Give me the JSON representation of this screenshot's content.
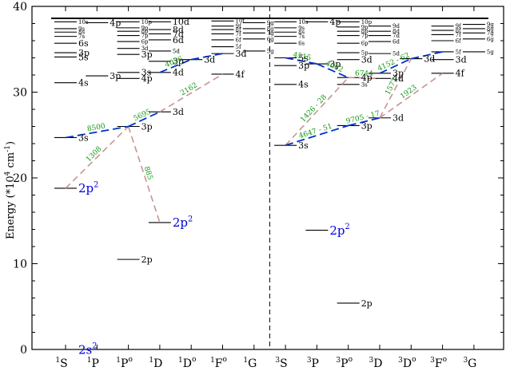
{
  "ylabel_main": "Energy (*10",
  "ylabel_sup": "4",
  "ylabel_unit": " cm",
  "ylabel_unit_sup": "-1",
  "ylabel_close": ")",
  "y_ticks": [
    0,
    10,
    20,
    30,
    40
  ],
  "columns_left": [
    "1S",
    "1P",
    "1Po",
    "1D",
    "1Do",
    "1Fo",
    "1G"
  ],
  "columns_right": [
    "3S",
    "3P",
    "3Po",
    "3D",
    "3Do",
    "3Fo",
    "3G"
  ],
  "column_labels": [
    {
      "mult": "1",
      "L": "S",
      "par": ""
    },
    {
      "mult": "1",
      "L": "P",
      "par": ""
    },
    {
      "mult": "1",
      "L": "P",
      "par": "o"
    },
    {
      "mult": "1",
      "L": "D",
      "par": ""
    },
    {
      "mult": "1",
      "L": "D",
      "par": "o"
    },
    {
      "mult": "1",
      "L": "F",
      "par": "o"
    },
    {
      "mult": "1",
      "L": "G",
      "par": ""
    },
    {
      "mult": "3",
      "L": "S",
      "par": ""
    },
    {
      "mult": "3",
      "L": "P",
      "par": ""
    },
    {
      "mult": "3",
      "L": "P",
      "par": "o"
    },
    {
      "mult": "3",
      "L": "D",
      "par": ""
    },
    {
      "mult": "3",
      "L": "D",
      "par": "o"
    },
    {
      "mult": "3",
      "L": "F",
      "par": "o"
    },
    {
      "mult": "3",
      "L": "G",
      "par": ""
    }
  ],
  "ionization_limit": 38.6,
  "levels": [
    {
      "col": 0,
      "E": 0,
      "label": "2s",
      "sup": "2",
      "color": "#0000dd",
      "size": "big"
    },
    {
      "col": 0,
      "E": 18.8,
      "label": "2p",
      "sup": "2",
      "color": "#0000dd",
      "size": "big"
    },
    {
      "col": 0,
      "E": 24.7,
      "label": "3s",
      "sup": "",
      "color": "#000000",
      "size": "med"
    },
    {
      "col": 0,
      "E": 31.1,
      "label": "4s",
      "sup": "",
      "color": "#000000",
      "size": "med"
    },
    {
      "col": 0,
      "E": 34.1,
      "label": "5s",
      "sup": "",
      "color": "#000000",
      "size": "med"
    },
    {
      "col": 0,
      "E": 34.6,
      "label": "3p",
      "sup": "",
      "color": "#000000",
      "size": "med"
    },
    {
      "col": 0,
      "E": 35.7,
      "label": "6s",
      "sup": "",
      "color": "#000000",
      "size": "med"
    },
    {
      "col": 0,
      "E": 36.5,
      "label": "7s",
      "sup": "",
      "color": "#000000",
      "size": "small"
    },
    {
      "col": 0,
      "E": 37.0,
      "label": "8s",
      "sup": "",
      "color": "#000000",
      "size": "small"
    },
    {
      "col": 0,
      "E": 37.4,
      "label": "9s",
      "sup": "",
      "color": "#000000",
      "size": "small"
    },
    {
      "col": 0,
      "E": 38.2,
      "label": "10s",
      "sup": "",
      "color": "#000000",
      "size": "small"
    },
    {
      "col": 1,
      "E": 31.9,
      "label": "3p",
      "sup": "",
      "color": "#000000",
      "size": "med"
    },
    {
      "col": 1,
      "E": 38.1,
      "label": "4p",
      "sup": "",
      "color": "#000000",
      "size": "med"
    },
    {
      "col": 2,
      "E": 10.5,
      "label": "2p",
      "sup": "",
      "color": "#000000",
      "size": "med"
    },
    {
      "col": 2,
      "E": 26.0,
      "label": "3p",
      "sup": "",
      "color": "#000000",
      "size": "med"
    },
    {
      "col": 2,
      "E": 31.6,
      "label": "4p",
      "sup": "",
      "color": "#000000",
      "size": "med"
    },
    {
      "col": 2,
      "E": 32.3,
      "label": "3s",
      "sup": "",
      "color": "#000000",
      "size": "med"
    },
    {
      "col": 2,
      "E": 34.4,
      "label": "3p",
      "sup": "",
      "color": "#000000",
      "size": "med"
    },
    {
      "col": 2,
      "E": 35.1,
      "label": "3d",
      "sup": "",
      "color": "#000000",
      "size": "small"
    },
    {
      "col": 2,
      "E": 35.9,
      "label": "6p",
      "sup": "",
      "color": "#000000",
      "size": "small"
    },
    {
      "col": 2,
      "E": 36.6,
      "label": "7p",
      "sup": "",
      "color": "#000000",
      "size": "small"
    },
    {
      "col": 2,
      "E": 37.1,
      "label": "8p",
      "sup": "",
      "color": "#000000",
      "size": "small"
    },
    {
      "col": 2,
      "E": 37.5,
      "label": "9p",
      "sup": "",
      "color": "#000000",
      "size": "small"
    },
    {
      "col": 2,
      "E": 38.2,
      "label": "10p",
      "sup": "",
      "color": "#000000",
      "size": "small"
    },
    {
      "col": 3,
      "E": 14.8,
      "label": "2p",
      "sup": "2",
      "color": "#0000dd",
      "size": "big"
    },
    {
      "col": 3,
      "E": 27.7,
      "label": "3d",
      "sup": "",
      "color": "#000000",
      "size": "med"
    },
    {
      "col": 3,
      "E": 32.3,
      "label": "4d",
      "sup": "",
      "color": "#000000",
      "size": "med"
    },
    {
      "col": 3,
      "E": 33.6,
      "label": "3p",
      "sup": "",
      "color": "#000000",
      "size": "med"
    },
    {
      "col": 3,
      "E": 34.8,
      "label": "5d",
      "sup": "",
      "color": "#000000",
      "size": "small"
    },
    {
      "col": 3,
      "E": 36.1,
      "label": "6d",
      "sup": "",
      "color": "#000000",
      "size": "med"
    },
    {
      "col": 3,
      "E": 36.8,
      "label": "7d",
      "sup": "",
      "color": "#000000",
      "size": "med"
    },
    {
      "col": 3,
      "E": 37.3,
      "label": "8d",
      "sup": "",
      "color": "#000000",
      "size": "med"
    },
    {
      "col": 3,
      "E": 38.2,
      "label": "10d",
      "sup": "",
      "color": "#000000",
      "size": "med"
    },
    {
      "col": 4,
      "E": 33.8,
      "label": "3d",
      "sup": "",
      "color": "#000000",
      "size": "med"
    },
    {
      "col": 5,
      "E": 32.1,
      "label": "4f",
      "sup": "",
      "color": "#000000",
      "size": "med"
    },
    {
      "col": 5,
      "E": 34.5,
      "label": "3d",
      "sup": "",
      "color": "#000000",
      "size": "med"
    },
    {
      "col": 5,
      "E": 35.3,
      "label": "5f",
      "sup": "",
      "color": "#000000",
      "size": "small"
    },
    {
      "col": 5,
      "E": 36.1,
      "label": "6f",
      "sup": "",
      "color": "#000000",
      "size": "small"
    },
    {
      "col": 5,
      "E": 36.8,
      "label": "7f",
      "sup": "",
      "color": "#000000",
      "size": "small"
    },
    {
      "col": 5,
      "E": 37.3,
      "label": "8f",
      "sup": "",
      "color": "#000000",
      "size": "small"
    },
    {
      "col": 5,
      "E": 37.7,
      "label": "9f",
      "sup": "",
      "color": "#000000",
      "size": "small"
    },
    {
      "col": 5,
      "E": 38.3,
      "label": "10f",
      "sup": "",
      "color": "#000000",
      "size": "small"
    },
    {
      "col": 6,
      "E": 34.8,
      "label": "5g",
      "sup": "",
      "color": "#000000",
      "size": "small"
    },
    {
      "col": 6,
      "E": 36.2,
      "label": "6g",
      "sup": "",
      "color": "#000000",
      "size": "small"
    },
    {
      "col": 6,
      "E": 36.9,
      "label": "7g",
      "sup": "",
      "color": "#000000",
      "size": "small"
    },
    {
      "col": 6,
      "E": 37.4,
      "label": "8g",
      "sup": "",
      "color": "#000000",
      "size": "small"
    },
    {
      "col": 6,
      "E": 38.1,
      "label": "9g",
      "sup": "",
      "color": "#000000",
      "size": "small"
    },
    {
      "col": 7,
      "E": 23.8,
      "label": "3s",
      "sup": "",
      "color": "#000000",
      "size": "med"
    },
    {
      "col": 7,
      "E": 30.9,
      "label": "4s",
      "sup": "",
      "color": "#000000",
      "size": "med"
    },
    {
      "col": 7,
      "E": 33.1,
      "label": "3p",
      "sup": "",
      "color": "#000000",
      "size": "med"
    },
    {
      "col": 7,
      "E": 34.0,
      "label": "5s",
      "sup": "",
      "color": "#000000",
      "size": "med"
    },
    {
      "col": 7,
      "E": 35.7,
      "label": "6s",
      "sup": "",
      "color": "#000000",
      "size": "small"
    },
    {
      "col": 7,
      "E": 36.5,
      "label": "7s",
      "sup": "",
      "color": "#000000",
      "size": "small"
    },
    {
      "col": 7,
      "E": 37.0,
      "label": "8s",
      "sup": "",
      "color": "#000000",
      "size": "small"
    },
    {
      "col": 7,
      "E": 37.5,
      "label": "9s",
      "sup": "",
      "color": "#000000",
      "size": "small"
    },
    {
      "col": 7,
      "E": 38.2,
      "label": "10s",
      "sup": "",
      "color": "#000000",
      "size": "small"
    },
    {
      "col": 8,
      "E": 13.9,
      "label": "2p",
      "sup": "2",
      "color": "#0000dd",
      "size": "big"
    },
    {
      "col": 8,
      "E": 33.3,
      "label": "3p",
      "sup": "",
      "color": "#000000",
      "size": "med"
    },
    {
      "col": 8,
      "E": 38.2,
      "label": "4p",
      "sup": "",
      "color": "#000000",
      "size": "med"
    },
    {
      "col": 9,
      "E": 5.4,
      "label": "2p",
      "sup": "",
      "color": "#000000",
      "size": "med"
    },
    {
      "col": 9,
      "E": 26.1,
      "label": "3p",
      "sup": "",
      "color": "#000000",
      "size": "med"
    },
    {
      "col": 9,
      "E": 30.9,
      "label": "3s",
      "sup": "",
      "color": "#000000",
      "size": "small"
    },
    {
      "col": 9,
      "E": 31.7,
      "label": "4p",
      "sup": "",
      "color": "#000000",
      "size": "med"
    },
    {
      "col": 9,
      "E": 33.8,
      "label": "3d",
      "sup": "",
      "color": "#000000",
      "size": "med"
    },
    {
      "col": 9,
      "E": 34.6,
      "label": "5p",
      "sup": "",
      "color": "#000000",
      "size": "small"
    },
    {
      "col": 9,
      "E": 35.7,
      "label": "6p",
      "sup": "",
      "color": "#000000",
      "size": "small"
    },
    {
      "col": 9,
      "E": 36.6,
      "label": "7p",
      "sup": "",
      "color": "#000000",
      "size": "small"
    },
    {
      "col": 9,
      "E": 37.1,
      "label": "8p",
      "sup": "",
      "color": "#000000",
      "size": "small"
    },
    {
      "col": 9,
      "E": 37.6,
      "label": "9p",
      "sup": "",
      "color": "#000000",
      "size": "small"
    },
    {
      "col": 9,
      "E": 38.2,
      "label": "10p",
      "sup": "",
      "color": "#000000",
      "size": "small"
    },
    {
      "col": 10,
      "E": 27.0,
      "label": "3d",
      "sup": "",
      "color": "#000000",
      "size": "med"
    },
    {
      "col": 10,
      "E": 31.6,
      "label": "4d",
      "sup": "",
      "color": "#000000",
      "size": "med"
    },
    {
      "col": 10,
      "E": 32.2,
      "label": "3p",
      "sup": "",
      "color": "#000000",
      "size": "med"
    },
    {
      "col": 10,
      "E": 34.5,
      "label": "5d",
      "sup": "",
      "color": "#000000",
      "size": "small"
    },
    {
      "col": 10,
      "E": 35.9,
      "label": "6d",
      "sup": "",
      "color": "#000000",
      "size": "small"
    },
    {
      "col": 10,
      "E": 36.6,
      "label": "7d",
      "sup": "",
      "color": "#000000",
      "size": "small"
    },
    {
      "col": 10,
      "E": 37.1,
      "label": "8d",
      "sup": "",
      "color": "#000000",
      "size": "small"
    },
    {
      "col": 10,
      "E": 37.7,
      "label": "9d",
      "sup": "",
      "color": "#000000",
      "size": "small"
    },
    {
      "col": 11,
      "E": 33.9,
      "label": "3d",
      "sup": "",
      "color": "#000000",
      "size": "med"
    },
    {
      "col": 12,
      "E": 32.2,
      "label": "4f",
      "sup": "",
      "color": "#000000",
      "size": "med"
    },
    {
      "col": 12,
      "E": 33.8,
      "label": "3d",
      "sup": "",
      "color": "#000000",
      "size": "med"
    },
    {
      "col": 12,
      "E": 34.7,
      "label": "5f",
      "sup": "",
      "color": "#000000",
      "size": "small"
    },
    {
      "col": 12,
      "E": 36.0,
      "label": "6f",
      "sup": "",
      "color": "#000000",
      "size": "small"
    },
    {
      "col": 12,
      "E": 36.7,
      "label": "7f",
      "sup": "",
      "color": "#000000",
      "size": "small"
    },
    {
      "col": 12,
      "E": 37.2,
      "label": "8f",
      "sup": "",
      "color": "#000000",
      "size": "small"
    },
    {
      "col": 12,
      "E": 37.7,
      "label": "9f",
      "sup": "",
      "color": "#000000",
      "size": "small"
    },
    {
      "col": 13,
      "E": 34.7,
      "label": "5g",
      "sup": "",
      "color": "#000000",
      "size": "small"
    },
    {
      "col": 13,
      "E": 36.2,
      "label": "6g",
      "sup": "",
      "color": "#000000",
      "size": "small"
    },
    {
      "col": 13,
      "E": 36.9,
      "label": "7g",
      "sup": "",
      "color": "#000000",
      "size": "small"
    },
    {
      "col": 13,
      "E": 37.4,
      "label": "8g",
      "sup": "",
      "color": "#000000",
      "size": "small"
    },
    {
      "col": 13,
      "E": 37.9,
      "label": "9g",
      "sup": "",
      "color": "#000000",
      "size": "small"
    }
  ],
  "blue_connectors": [
    {
      "from": [
        0,
        24.7
      ],
      "to": [
        2,
        26.0
      ],
      "label": "8500"
    },
    {
      "from": [
        2,
        26.0
      ],
      "to": [
        3,
        27.7
      ],
      "label": "5695"
    },
    {
      "from": [
        3,
        32.3
      ],
      "to": [
        4,
        33.8
      ],
      "label": "4056"
    },
    {
      "from": [
        4,
        33.8
      ],
      "to": [
        5,
        34.5
      ],
      "label": ""
    },
    {
      "from": [
        7,
        23.8
      ],
      "to": [
        9,
        26.1
      ],
      "label": "4647 - 51"
    },
    {
      "from": [
        9,
        26.1
      ],
      "to": [
        10,
        27.0
      ],
      "label": "9705 - 17"
    },
    {
      "from": [
        7,
        34.0
      ],
      "to": [
        8,
        33.3
      ],
      "label": "4515"
    },
    {
      "from": [
        8,
        33.3
      ],
      "to": [
        9,
        31.7
      ],
      "label": "4662"
    },
    {
      "from": [
        10,
        32.2
      ],
      "to": [
        11,
        33.9
      ],
      "label": "4152 - 62"
    },
    {
      "from": [
        11,
        33.9
      ],
      "to": [
        12,
        34.7
      ],
      "label": ""
    }
  ],
  "pink_connectors": [
    {
      "from": [
        0,
        18.8
      ],
      "to": [
        2,
        26.0
      ],
      "label": "1308"
    },
    {
      "from": [
        2,
        26.0
      ],
      "to": [
        3,
        14.8
      ],
      "label": "885"
    },
    {
      "from": [
        3,
        27.7
      ],
      "to": [
        5,
        32.1
      ],
      "label": "2162"
    },
    {
      "from": [
        7,
        23.8
      ],
      "to": [
        9,
        31.7
      ],
      "label": "1426 - 28"
    },
    {
      "from": [
        9,
        31.7
      ],
      "to": [
        10,
        31.6
      ],
      "label": "6744"
    },
    {
      "from": [
        10,
        27.0
      ],
      "to": [
        12,
        32.2
      ],
      "label": "1923"
    },
    {
      "from": [
        10,
        27.0
      ],
      "to": [
        11,
        33.9
      ],
      "label": "1577"
    }
  ],
  "colors": {
    "blue": "#0033cc",
    "pink": "#c89494",
    "label_green": "#119911",
    "level_blue": "#0000dd"
  }
}
